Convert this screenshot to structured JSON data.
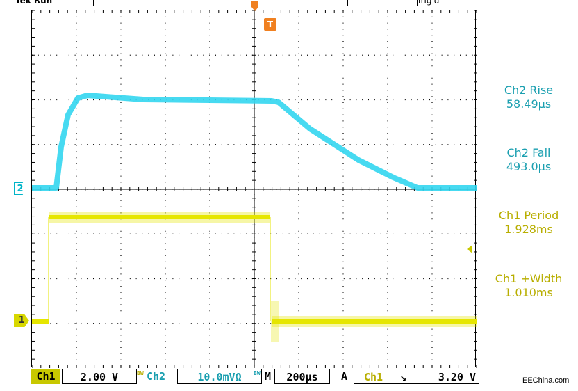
{
  "header": {
    "left_text": "Tek Run",
    "right_text": "Trig'd"
  },
  "markers": {
    "ch2": "2",
    "ch1": "1",
    "trigger": "T"
  },
  "measurements": [
    {
      "name": "Ch2 Rise",
      "value": "58.49µs",
      "color": "#1a9fb0"
    },
    {
      "name": "Ch2 Fall",
      "value": "493.0µs",
      "color": "#1a9fb0"
    },
    {
      "name": "Ch1 Period",
      "value": "1.928ms",
      "color": "#b8ae00"
    },
    {
      "name": "Ch1 +Width",
      "value": "1.010ms",
      "color": "#b8ae00"
    }
  ],
  "status_bar": {
    "ch1_label": "Ch1",
    "ch1_scale": "2.00 V",
    "bw_label": "BW",
    "ch2_label": "Ch2",
    "ch2_scale": "10.0mVΩ",
    "bw_label2": "BW",
    "m_label": "M",
    "timebase": "200µs",
    "a_label": "A",
    "trig_source": "Ch1",
    "trig_slope": "↘",
    "trig_level": "3.20 V"
  },
  "watermark": "EEChina.com",
  "colors": {
    "ch1": "#e6e600",
    "ch2": "#33d6f0",
    "trigger": "#f08020",
    "grid": "#000000"
  }
}
